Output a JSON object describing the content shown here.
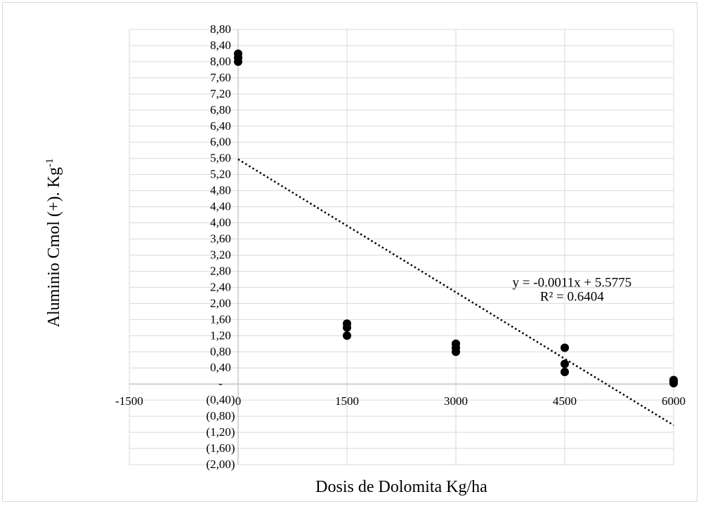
{
  "chart_data": {
    "type": "scatter",
    "title": "",
    "xlabel": "Dosis de Dolomita Kg/ha",
    "ylabel": {
      "text": "Aluminio Cmol (+). Kg",
      "superscript": "-1"
    },
    "xlim": [
      -1500,
      6000
    ],
    "ylim": [
      -2.0,
      8.8
    ],
    "x_ticks": [
      -1500,
      0,
      1500,
      3000,
      4500,
      6000
    ],
    "x_tick_labels": [
      "-1500",
      "0",
      "1500",
      "3000",
      "4500",
      "6000"
    ],
    "y_ticks": [
      8.8,
      8.4,
      8.0,
      7.6,
      7.2,
      6.8,
      6.4,
      6.0,
      5.6,
      5.2,
      4.8,
      4.4,
      4.0,
      3.6,
      3.2,
      2.8,
      2.4,
      2.0,
      1.6,
      1.2,
      0.8,
      0.4,
      0,
      -0.4,
      -0.8,
      -1.2,
      -1.6,
      -2.0
    ],
    "y_tick_labels": [
      "8,80",
      "8,40",
      "8,00",
      "7,60",
      "7,20",
      "6,80",
      "6,40",
      "6,00",
      "5,60",
      "5,20",
      "4,80",
      "4,40",
      "4,00",
      "3,60",
      "3,20",
      "2,80",
      "2,40",
      "2,00",
      "1,60",
      "1,20",
      "0,80",
      "0,40",
      "-",
      "(0,40)",
      "(0,80)",
      "(1,20)",
      "(1,60)",
      "(2,00)"
    ],
    "grid": true,
    "legend": "none",
    "points": [
      {
        "x": 0,
        "y": 8.2
      },
      {
        "x": 0,
        "y": 8.1
      },
      {
        "x": 0,
        "y": 8.0
      },
      {
        "x": 1500,
        "y": 1.5
      },
      {
        "x": 1500,
        "y": 1.4
      },
      {
        "x": 1500,
        "y": 1.2
      },
      {
        "x": 3000,
        "y": 1.0
      },
      {
        "x": 3000,
        "y": 0.9
      },
      {
        "x": 3000,
        "y": 0.8
      },
      {
        "x": 4500,
        "y": 0.9
      },
      {
        "x": 4500,
        "y": 0.5
      },
      {
        "x": 4500,
        "y": 0.3
      },
      {
        "x": 6000,
        "y": 0.1
      },
      {
        "x": 6000,
        "y": 0.05
      },
      {
        "x": 6000,
        "y": 0.02
      }
    ],
    "trendline": {
      "style": "dotted",
      "slope": -0.0011,
      "intercept": 5.5775,
      "x_range": [
        0,
        6000
      ],
      "equation": "y = -0.0011x + 5.5775",
      "r_squared": "R² = 0.6404"
    },
    "colors": {
      "marker": "#000000",
      "grid": "#d9d9d9",
      "axis": "#bfbfbf",
      "trendline": "#000000"
    }
  }
}
